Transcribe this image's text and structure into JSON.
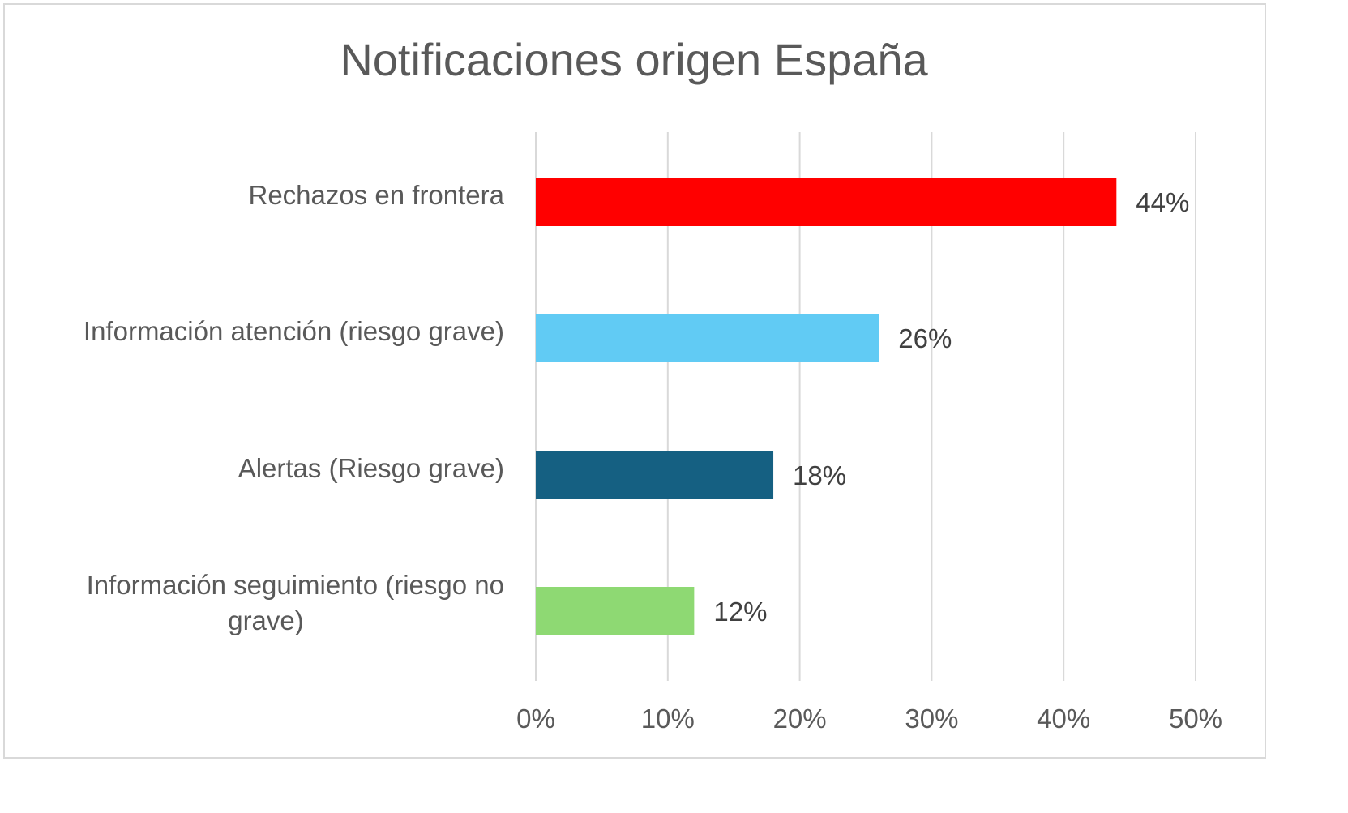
{
  "chart_data": {
    "type": "bar",
    "orientation": "horizontal",
    "title": "Notificaciones origen España",
    "categories": [
      [
        "Rechazos en frontera"
      ],
      [
        "Información atención (riesgo grave)"
      ],
      [
        "Alertas (Riesgo grave)"
      ],
      [
        "Información seguimiento (riesgo no",
        "grave)"
      ]
    ],
    "values": [
      44,
      26,
      18,
      12
    ],
    "value_labels": [
      "44%",
      "26%",
      "18%",
      "12%"
    ],
    "colors": [
      "#ff0000",
      "#61cbf4",
      "#156082",
      "#8ed973"
    ],
    "xlim": [
      0,
      50
    ],
    "x_ticks": [
      0,
      10,
      20,
      30,
      40,
      50
    ],
    "x_tick_labels": [
      "0%",
      "10%",
      "20%",
      "30%",
      "40%",
      "50%"
    ],
    "grid": "vertical",
    "legend": "none",
    "gridline_color": "#d9d9d9"
  }
}
